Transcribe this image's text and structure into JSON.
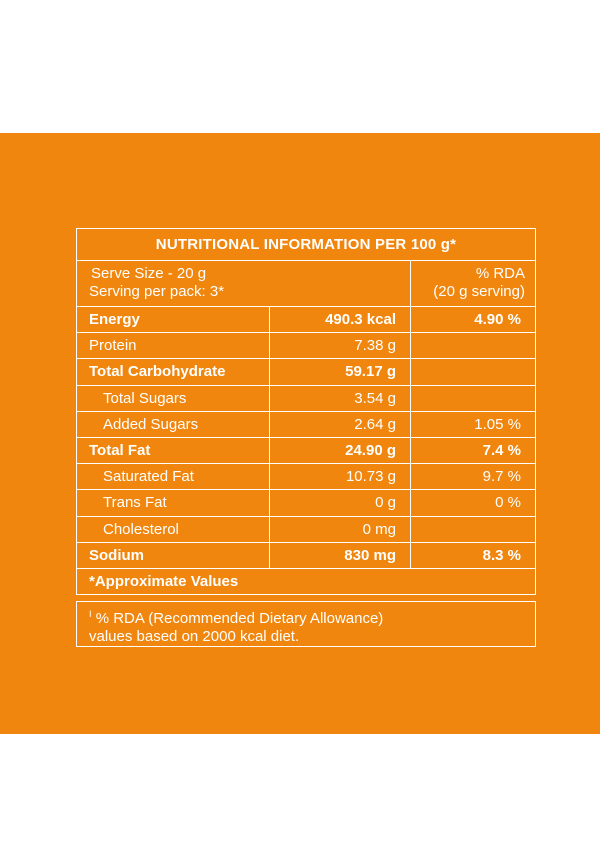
{
  "table": {
    "title": "NUTRITIONAL INFORMATION PER 100 g*",
    "serve_size": "Serve Size - 20 g",
    "serving_per_pack": "Serving per pack: 3*",
    "rda_header": "% RDA",
    "rda_subheader": "(20 g serving)",
    "rows": [
      {
        "name": "Energy",
        "amount": "490.3 kcal",
        "rda": "4.90 %"
      },
      {
        "name": "Protein",
        "amount": "7.38 g",
        "rda": ""
      },
      {
        "name": "Total Carbohydrate",
        "amount": "59.17 g",
        "rda": ""
      },
      {
        "name": "Total Sugars",
        "amount": "3.54 g",
        "rda": ""
      },
      {
        "name": "Added Sugars",
        "amount": "2.64 g",
        "rda": "1.05 %"
      },
      {
        "name": "Total Fat",
        "amount": "24.90 g",
        "rda": "7.4 %"
      },
      {
        "name": "Saturated Fat",
        "amount": "10.73 g",
        "rda": "9.7 %"
      },
      {
        "name": "Trans Fat",
        "amount": "0 g",
        "rda": "0 %"
      },
      {
        "name": "Cholesterol",
        "amount": "0 mg",
        "rda": ""
      },
      {
        "name": "Sodium",
        "amount": "830 mg",
        "rda": "8.3 %"
      }
    ],
    "approx_note": "*Approximate Values"
  },
  "footnote": {
    "marker": "I",
    "line1": "% RDA (Recommended Dietary Allowance)",
    "line2": "values based on 2000 kcal diet."
  },
  "colors": {
    "background": "#f0860e",
    "text": "#ffffff"
  }
}
